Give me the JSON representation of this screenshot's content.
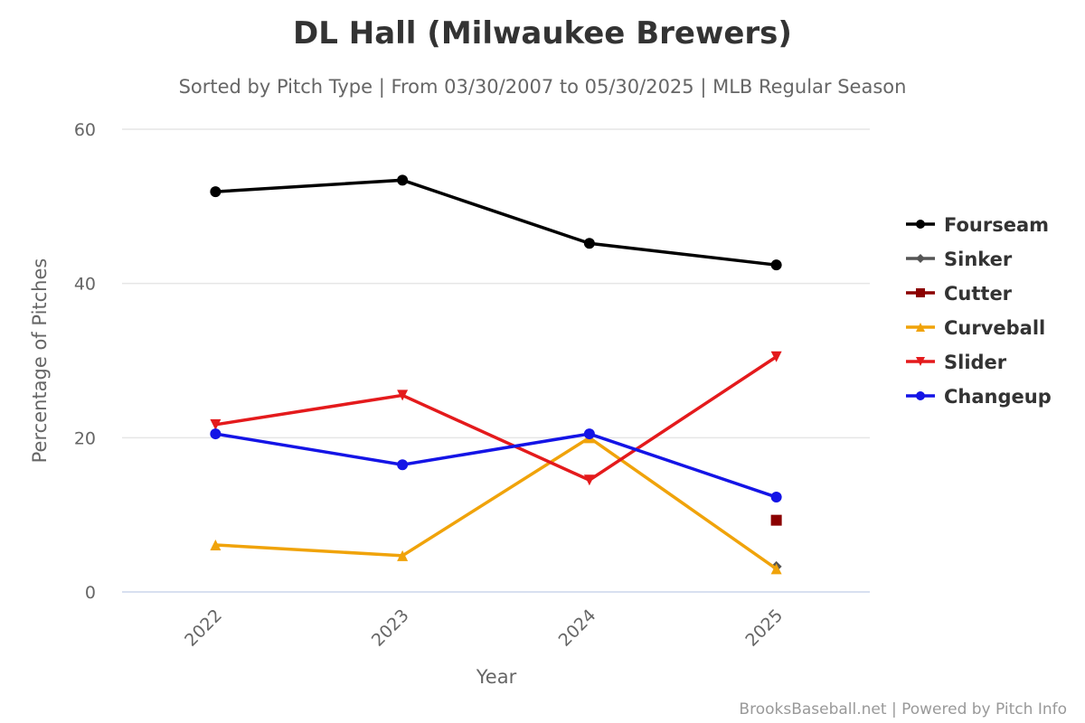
{
  "chart_data": {
    "type": "line",
    "title": "DL Hall (Milwaukee Brewers)",
    "subtitle": "Sorted by Pitch Type | From 03/30/2007 to 05/30/2025 | MLB Regular Season",
    "xlabel": "Year",
    "ylabel": "Percentage of Pitches",
    "categories": [
      "2022",
      "2023",
      "2024",
      "2025"
    ],
    "ylim": [
      0,
      60
    ],
    "yticks": [
      0,
      20,
      40,
      60
    ],
    "grid": true,
    "legend_position": "right",
    "series": [
      {
        "name": "Fourseam",
        "color": "#000000",
        "marker": "circle",
        "values": [
          51.9,
          53.4,
          45.2,
          42.4
        ]
      },
      {
        "name": "Sinker",
        "color": "#555555",
        "marker": "diamond",
        "values": [
          null,
          null,
          null,
          3.3
        ]
      },
      {
        "name": "Cutter",
        "color": "#8b0000",
        "marker": "square",
        "values": [
          null,
          null,
          null,
          9.3
        ]
      },
      {
        "name": "Curveball",
        "color": "#f0a30a",
        "marker": "triangle",
        "values": [
          6.1,
          4.7,
          20.0,
          3.0
        ]
      },
      {
        "name": "Slider",
        "color": "#e41a1c",
        "marker": "triangle-down",
        "values": [
          21.7,
          25.5,
          14.5,
          30.5
        ]
      },
      {
        "name": "Changeup",
        "color": "#1414e6",
        "marker": "circle",
        "values": [
          20.5,
          16.5,
          20.5,
          12.3
        ]
      }
    ]
  },
  "credit": "BrooksBaseball.net | Powered by Pitch Info"
}
